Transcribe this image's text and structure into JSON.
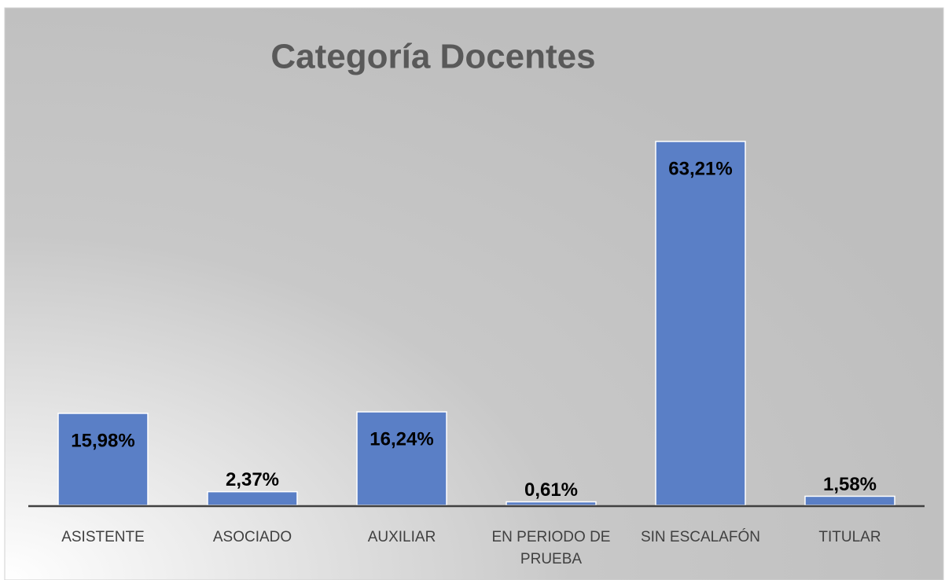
{
  "chart_data": {
    "type": "bar",
    "title": "Categoría Docentes",
    "categories": [
      "ASISTENTE",
      "ASOCIADO",
      "AUXILIAR",
      "EN PERIODO DE PRUEBA",
      "SIN ESCALAFÓN",
      "TITULAR"
    ],
    "values": [
      15.98,
      2.37,
      16.24,
      0.61,
      63.21,
      1.58
    ],
    "value_labels": [
      "15,98%",
      "2,37%",
      "16,24%",
      "0,61%",
      "63,21%",
      "1,58%"
    ],
    "color": "#5a7fc6"
  }
}
